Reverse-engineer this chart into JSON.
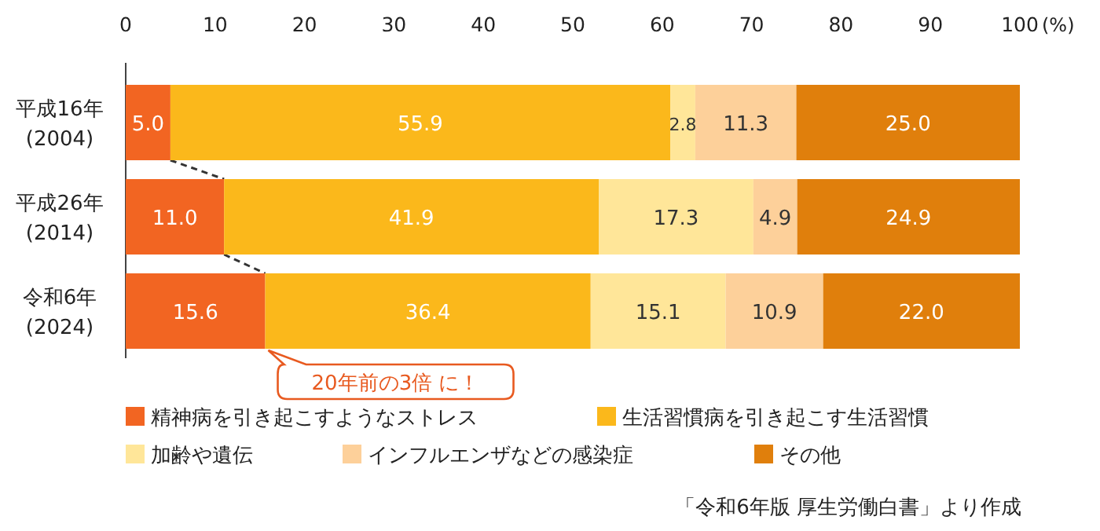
{
  "chart_data": {
    "type": "bar",
    "orientation": "horizontal",
    "stacked": true,
    "legend": "bottom",
    "grid": false,
    "categories": [
      "平成16年\n(2004)",
      "平成26年\n(2014)",
      "令和6年\n(2024)"
    ],
    "xlim": [
      0,
      100
    ],
    "xticks": [
      0,
      10,
      20,
      30,
      40,
      50,
      60,
      70,
      80,
      90,
      100
    ],
    "xlabel": "(%)",
    "series": [
      {
        "name": "精神病を引き起こすようなストレス",
        "color": "#f26522",
        "values": [
          5.0,
          11.0,
          15.6
        ],
        "value_labels": [
          "5.0",
          "11.0",
          "15.6"
        ]
      },
      {
        "name": "生活習慣病を引き起こす生活習慣",
        "color": "#fbb81b",
        "values": [
          55.9,
          41.9,
          36.4
        ],
        "value_labels": [
          "55.9",
          "41.9",
          "36.4"
        ]
      },
      {
        "name": "加齢や遺伝",
        "color": "#ffe699",
        "values": [
          2.8,
          17.3,
          15.1
        ],
        "value_labels": [
          "2.8",
          "17.3",
          "15.1"
        ]
      },
      {
        "name": "インフルエンザなどの感染症",
        "color": "#fdd09a",
        "values": [
          11.3,
          4.9,
          10.9
        ],
        "value_labels": [
          "11.3",
          "4.9",
          "10.9"
        ]
      },
      {
        "name": "その他",
        "color": "#e07f0c",
        "values": [
          25.0,
          24.9,
          22.0
        ],
        "value_labels": [
          "25.0",
          "24.9",
          "22.0"
        ]
      }
    ],
    "annotations": [
      {
        "text": "20年前の3倍 に！",
        "x": 15.6,
        "y": "令和6年\n(2024)"
      },
      "「令和6年版 厚生労働白書」より作成"
    ]
  }
}
